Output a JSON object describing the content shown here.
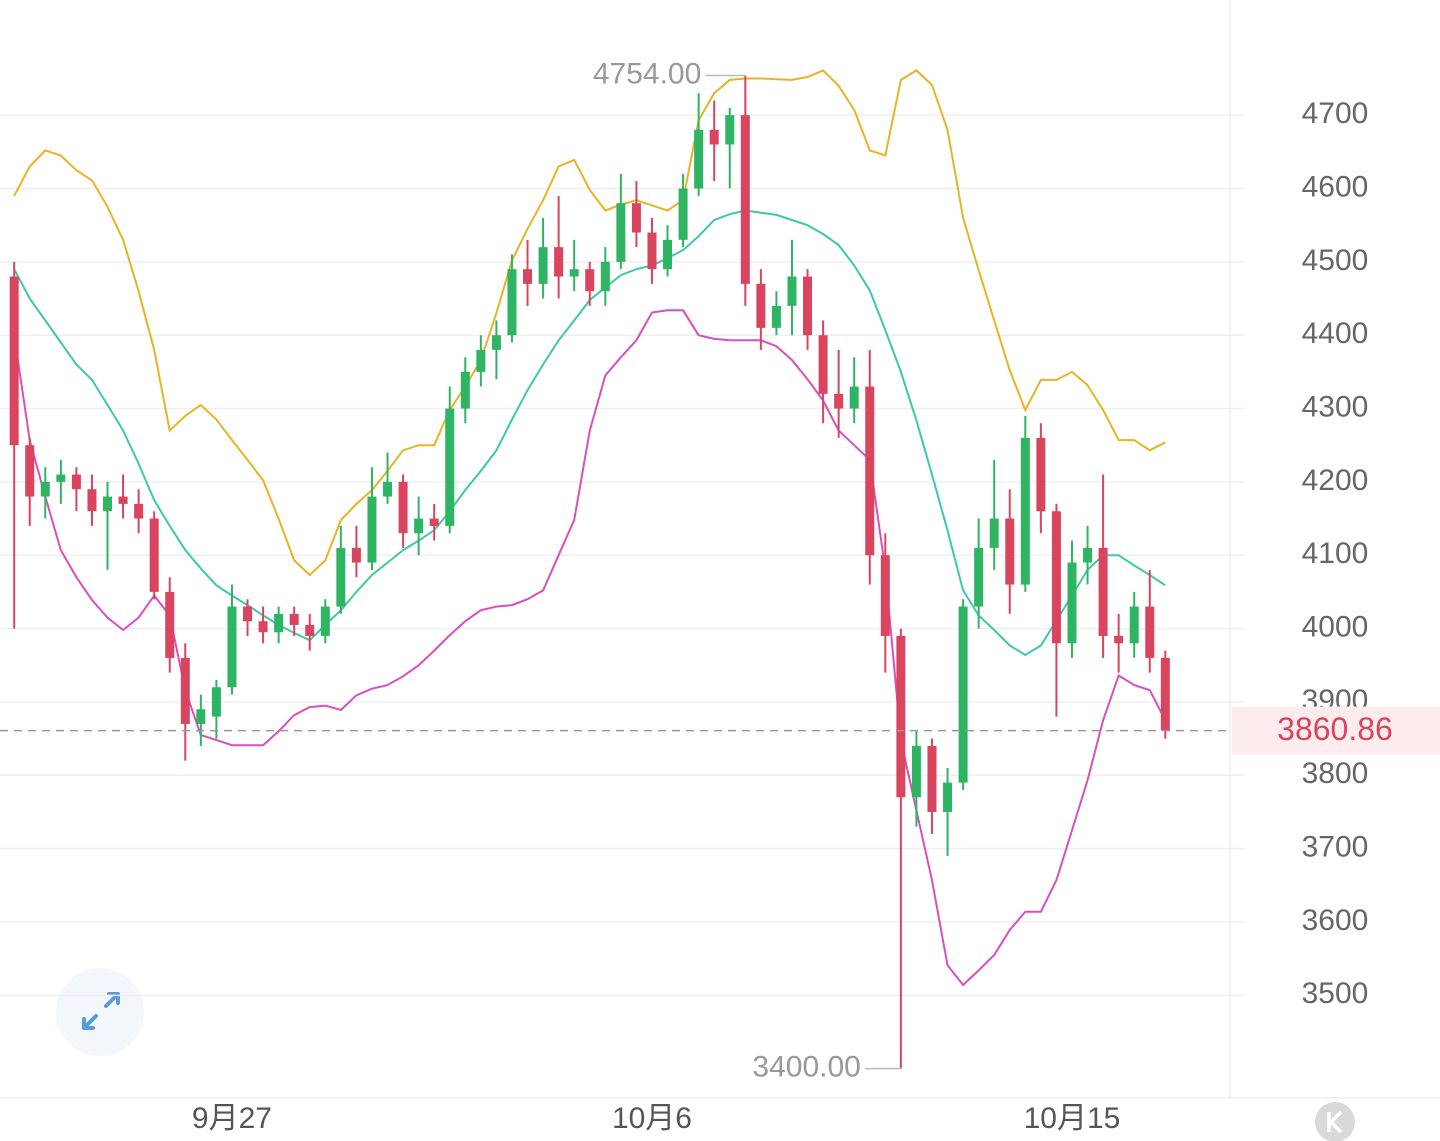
{
  "chart_data": {
    "type": "candlestick",
    "categories": [
      null,
      null,
      null,
      null,
      null,
      null,
      null,
      null,
      null,
      null,
      null,
      null,
      null,
      null,
      "9月27",
      null,
      null,
      null,
      null,
      null,
      null,
      null,
      null,
      null,
      null,
      null,
      null,
      null,
      null,
      null,
      null,
      null,
      null,
      null,
      null,
      null,
      null,
      null,
      null,
      null,
      null,
      "10月6",
      null,
      null,
      null,
      null,
      null,
      null,
      null,
      null,
      null,
      null,
      null,
      null,
      null,
      null,
      null,
      null,
      null,
      null,
      null,
      null,
      null,
      null,
      null,
      null,
      null,
      null,
      "10月15",
      null,
      null,
      null,
      null,
      null,
      null
    ],
    "open": [
      4480,
      4250,
      4180,
      4200,
      4210,
      4190,
      4160,
      4180,
      4170,
      4150,
      4050,
      3960,
      3870,
      3880,
      3920,
      4030,
      4010,
      3995,
      4020,
      4005,
      3990,
      4030,
      4110,
      4090,
      4180,
      4200,
      4130,
      4150,
      4140,
      4300,
      4350,
      4380,
      4400,
      4490,
      4470,
      4520,
      4480,
      4490,
      4460,
      4500,
      4580,
      4540,
      4490,
      4530,
      4600,
      4680,
      4660,
      4700,
      4470,
      4410,
      4440,
      4480,
      4400,
      4320,
      4300,
      4330,
      4100,
      3990,
      3770,
      3840,
      3750,
      3790,
      4030,
      4110,
      4150,
      4060,
      4260,
      4160,
      3980,
      4090,
      4110,
      3990,
      3980,
      4030,
      3960
    ],
    "high": [
      4500,
      4260,
      4220,
      4230,
      4220,
      4210,
      4200,
      4210,
      4190,
      4160,
      4070,
      3980,
      3910,
      3930,
      4060,
      4040,
      4030,
      4030,
      4030,
      4020,
      4040,
      4140,
      4140,
      4220,
      4240,
      4210,
      4180,
      4170,
      4330,
      4370,
      4400,
      4420,
      4510,
      4530,
      4560,
      4590,
      4530,
      4500,
      4520,
      4620,
      4610,
      4560,
      4550,
      4620,
      4730,
      4720,
      4710,
      4754,
      4490,
      4460,
      4530,
      4490,
      4420,
      4380,
      4370,
      4380,
      4130,
      4000,
      3860,
      3850,
      3810,
      4040,
      4150,
      4230,
      4190,
      4290,
      4280,
      4170,
      4120,
      4140,
      4210,
      4020,
      4050,
      4080,
      3970
    ],
    "low": [
      4000,
      4140,
      4150,
      4170,
      4160,
      4140,
      4080,
      4150,
      4130,
      4040,
      3940,
      3820,
      3840,
      3850,
      3910,
      3990,
      3980,
      3980,
      3990,
      3970,
      3980,
      4020,
      4070,
      4080,
      4170,
      4110,
      4100,
      4120,
      4130,
      4280,
      4330,
      4340,
      4390,
      4440,
      4450,
      4450,
      4460,
      4440,
      4440,
      4490,
      4520,
      4470,
      4480,
      4520,
      4590,
      4610,
      4600,
      4440,
      4380,
      4400,
      4400,
      4380,
      4280,
      4260,
      4280,
      4060,
      3940,
      3400,
      3730,
      3720,
      3690,
      3780,
      4000,
      4080,
      4020,
      4050,
      4130,
      3880,
      3960,
      4060,
      3960,
      3940,
      3960,
      3940,
      3850
    ],
    "close": [
      4250,
      4180,
      4200,
      4210,
      4190,
      4160,
      4180,
      4170,
      4150,
      4050,
      3960,
      3870,
      3890,
      3920,
      4030,
      4010,
      3995,
      4020,
      4005,
      3990,
      4030,
      4110,
      4090,
      4180,
      4200,
      4130,
      4150,
      4140,
      4300,
      4350,
      4380,
      4400,
      4490,
      4470,
      4520,
      4480,
      4490,
      4460,
      4500,
      4580,
      4540,
      4490,
      4530,
      4600,
      4680,
      4660,
      4700,
      4470,
      4410,
      4440,
      4480,
      4400,
      4320,
      4300,
      4330,
      4100,
      3990,
      3770,
      3840,
      3750,
      3790,
      4030,
      4110,
      4150,
      4060,
      4260,
      4160,
      3980,
      4090,
      4110,
      3990,
      3980,
      4030,
      3960,
      3860.86
    ],
    "lines": [
      {
        "color": "#e8b423",
        "values": [
          4590,
          4630,
          4652,
          4645,
          4625,
          4611,
          4575,
          4530,
          4460,
          4380,
          4270,
          4290,
          4305,
          4285,
          4257,
          4230,
          4202,
          4150,
          4093,
          4073,
          4093,
          4148,
          4170,
          4189,
          4215,
          4243,
          4250,
          4250,
          4298,
          4330,
          4366,
          4430,
          4502,
          4545,
          4584,
          4630,
          4639,
          4598,
          4570,
          4578,
          4584,
          4577,
          4570,
          4584,
          4693,
          4730,
          4748,
          4750,
          4750,
          4749,
          4748,
          4752,
          4761,
          4740,
          4707,
          4652,
          4645,
          4748,
          4761,
          4741,
          4680,
          4560,
          4489,
          4420,
          4352,
          4298,
          4339,
          4339,
          4350,
          4332,
          4298,
          4257,
          4257,
          4243,
          4254
        ]
      },
      {
        "color": "#3cc9a8",
        "values": [
          4490,
          4450,
          4420,
          4390,
          4360,
          4339,
          4305,
          4270,
          4225,
          4175,
          4140,
          4107,
          4082,
          4059,
          4045,
          4032,
          4018,
          4005,
          3994,
          3984,
          4005,
          4025,
          4050,
          4073,
          4090,
          4107,
          4120,
          4134,
          4160,
          4189,
          4215,
          4243,
          4285,
          4325,
          4360,
          4393,
          4420,
          4448,
          4465,
          4482,
          4490,
          4495,
          4505,
          4516,
          4535,
          4557,
          4565,
          4570,
          4567,
          4564,
          4557,
          4550,
          4538,
          4523,
          4495,
          4461,
          4407,
          4350,
          4284,
          4210,
          4134,
          4052,
          4018,
          3998,
          3977,
          3964,
          3977,
          4011,
          4045,
          4080,
          4100,
          4100,
          4086,
          4073,
          4059
        ]
      },
      {
        "color": "#d84fc0",
        "values": [
          4400,
          4257,
          4180,
          4107,
          4070,
          4039,
          4015,
          3998,
          4015,
          4045,
          4018,
          3916,
          3855,
          3848,
          3841,
          3841,
          3841,
          3860,
          3882,
          3893,
          3895,
          3889,
          3909,
          3918,
          3923,
          3935,
          3950,
          3970,
          3991,
          4010,
          4025,
          4030,
          4032,
          4040,
          4052,
          4100,
          4148,
          4270,
          4345,
          4370,
          4393,
          4431,
          4434,
          4434,
          4400,
          4395,
          4393,
          4393,
          4393,
          4385,
          4366,
          4340,
          4311,
          4270,
          4250,
          4230,
          4080,
          3848,
          3752,
          3657,
          3541,
          3514,
          3534,
          3555,
          3589,
          3614,
          3614,
          3657,
          3725,
          3793,
          3875,
          3936,
          3923,
          3916,
          3875
        ]
      }
    ],
    "up_color": "#2fb463",
    "down_color": "#d9455e",
    "ylim": [
      3360,
      4857
    ],
    "yticks": [
      3500,
      3600,
      3700,
      3800,
      3900,
      4000,
      4100,
      4200,
      4300,
      4400,
      4500,
      4600,
      4700
    ],
    "grid": true,
    "annotations": {
      "high_label": "4754.00",
      "low_label": "3400.00",
      "last_label": "3860.86"
    }
  }
}
